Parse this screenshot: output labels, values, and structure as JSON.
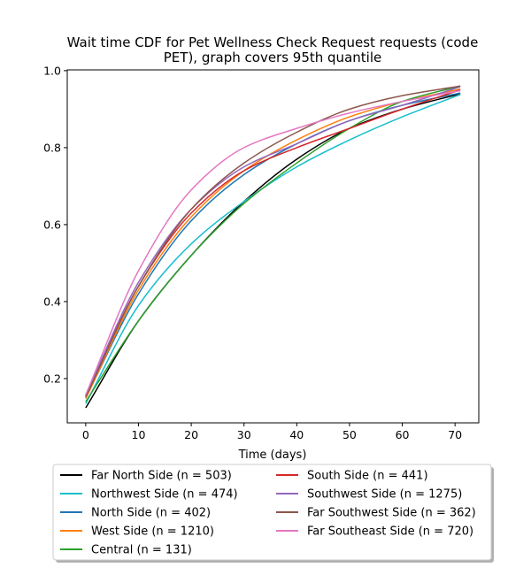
{
  "chart_data": {
    "type": "line",
    "title_line1": "Wait time CDF for Pet Wellness Check Request  requests (code",
    "title_line2": "PET), graph covers 95th quantile",
    "xlabel": "Time (days)",
    "ylabel": "",
    "xlim": [
      -3.5,
      74.5
    ],
    "ylim": [
      0.085,
      1.002
    ],
    "x_ticks": [
      0,
      10,
      20,
      30,
      40,
      50,
      60,
      70
    ],
    "y_ticks": [
      0.2,
      0.4,
      0.6,
      0.8,
      1.0
    ],
    "x_tick_labels": [
      "0",
      "10",
      "20",
      "30",
      "40",
      "50",
      "60",
      "70"
    ],
    "y_tick_labels": [
      "0.2",
      "0.4",
      "0.6",
      "0.8",
      "1.0"
    ],
    "grid": false,
    "legend_position": "below",
    "x": [
      0,
      10,
      20,
      30,
      40,
      50,
      60,
      71
    ],
    "series": [
      {
        "name": "Far North Side (n = 503)",
        "color": "#000000",
        "values": [
          0.124,
          0.35,
          0.52,
          0.66,
          0.77,
          0.85,
          0.9,
          0.94
        ]
      },
      {
        "name": "Northwest Side (n = 474)",
        "color": "#17becf",
        "values": [
          0.135,
          0.39,
          0.55,
          0.66,
          0.75,
          0.82,
          0.88,
          0.938
        ]
      },
      {
        "name": "North Side (n = 402)",
        "color": "#1f77b4",
        "values": [
          0.15,
          0.42,
          0.61,
          0.73,
          0.81,
          0.87,
          0.91,
          0.942
        ]
      },
      {
        "name": "West Side (n = 1210)",
        "color": "#ff7f0e",
        "values": [
          0.148,
          0.43,
          0.62,
          0.74,
          0.82,
          0.88,
          0.92,
          0.952
        ]
      },
      {
        "name": "Central (n = 131)",
        "color": "#2ca02c",
        "values": [
          0.14,
          0.35,
          0.52,
          0.655,
          0.76,
          0.85,
          0.92,
          0.96
        ]
      },
      {
        "name": "South Side (n = 441)",
        "color": "#d62728",
        "values": [
          0.155,
          0.44,
          0.63,
          0.74,
          0.8,
          0.85,
          0.9,
          0.95
        ]
      },
      {
        "name": "Southwest Side (n = 1275)",
        "color": "#9467bd",
        "values": [
          0.158,
          0.45,
          0.64,
          0.75,
          0.81,
          0.87,
          0.91,
          0.958
        ]
      },
      {
        "name": "Far Southwest Side (n = 362)",
        "color": "#8c564b",
        "values": [
          0.152,
          0.44,
          0.64,
          0.76,
          0.84,
          0.9,
          0.935,
          0.96
        ]
      },
      {
        "name": "Far Southeast Side (n = 720)",
        "color": "#e377c2",
        "values": [
          0.158,
          0.48,
          0.69,
          0.8,
          0.85,
          0.89,
          0.92,
          0.948
        ]
      }
    ]
  }
}
